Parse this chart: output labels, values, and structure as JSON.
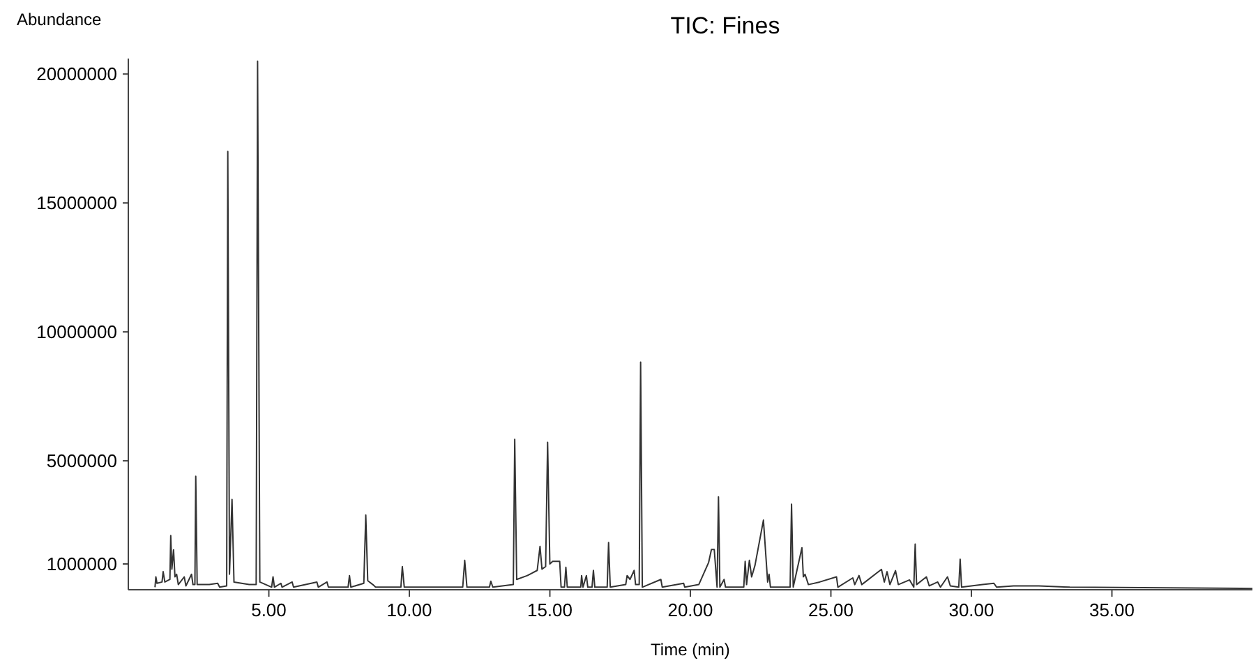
{
  "chart_data": {
    "type": "line",
    "title": "TIC: Fines",
    "xlabel": "Time (min)",
    "ylabel": "Abundance",
    "xlim": [
      0,
      40
    ],
    "xticks": [
      {
        "value": 5,
        "label": "5.00"
      },
      {
        "value": 10,
        "label": "10.00"
      },
      {
        "value": 15,
        "label": "15.00"
      },
      {
        "value": 20,
        "label": "20.00"
      },
      {
        "value": 25,
        "label": "25.00"
      },
      {
        "value": 30,
        "label": "30.00"
      },
      {
        "value": 35,
        "label": "35.00"
      }
    ],
    "ylim": [
      0,
      20600000
    ],
    "yticks": [
      1000000,
      5000000,
      10000000,
      15000000,
      20000000
    ],
    "grid": false,
    "marker": "none",
    "line_style": "solid",
    "series": [
      {
        "color": "#333333",
        "x": [
          0.95,
          0.98,
          1.02,
          1.2,
          1.24,
          1.3,
          1.48,
          1.51,
          1.55,
          1.61,
          1.66,
          1.72,
          1.78,
          1.99,
          2.05,
          2.25,
          2.3,
          2.37,
          2.4,
          2.45,
          2.88,
          3.18,
          3.25,
          3.5,
          3.54,
          3.6,
          3.69,
          3.76,
          4.3,
          4.55,
          4.6,
          4.68,
          5.1,
          5.15,
          5.2,
          5.43,
          5.47,
          5.83,
          5.88,
          6.71,
          6.76,
          7.07,
          7.12,
          7.82,
          7.87,
          7.92,
          8.38,
          8.45,
          8.52,
          8.7,
          8.8,
          9.7,
          9.75,
          9.82,
          11.9,
          11.97,
          12.05,
          12.85,
          12.9,
          12.97,
          13.7,
          13.75,
          13.82,
          14.2,
          14.55,
          14.65,
          14.72,
          14.85,
          14.92,
          15.0,
          15.1,
          15.35,
          15.4,
          15.52,
          15.57,
          15.62,
          16.1,
          16.13,
          16.18,
          16.3,
          16.35,
          16.5,
          16.55,
          16.6,
          17.04,
          17.09,
          17.15,
          17.7,
          17.75,
          17.85,
          18.0,
          18.05,
          18.18,
          18.23,
          18.29,
          18.95,
          19.0,
          19.76,
          19.8,
          20.3,
          20.65,
          20.75,
          20.85,
          20.95,
          21.0,
          21.05,
          21.2,
          21.25,
          21.9,
          21.95,
          22.0,
          22.1,
          22.18,
          22.3,
          22.6,
          22.75,
          22.8,
          22.85,
          23.55,
          23.6,
          23.66,
          23.97,
          24.02,
          24.08,
          24.2,
          24.6,
          25.2,
          25.25,
          25.78,
          25.85,
          26.0,
          26.1,
          26.8,
          26.9,
          27.0,
          27.1,
          27.3,
          27.4,
          27.8,
          27.95,
          28.0,
          28.05,
          28.4,
          28.5,
          28.8,
          28.9,
          29.15,
          29.25,
          29.55,
          29.6,
          29.65,
          30.4,
          30.8,
          30.9,
          31.5,
          32.4,
          33.5,
          40
        ],
        "values": [
          100000,
          500000,
          250000,
          300000,
          700000,
          300000,
          400000,
          2100000,
          800000,
          1550000,
          500000,
          600000,
          200000,
          500000,
          150000,
          600000,
          200000,
          200000,
          4400000,
          200000,
          200000,
          250000,
          100000,
          150000,
          17000000,
          600000,
          3500000,
          300000,
          200000,
          200000,
          20500000,
          300000,
          100000,
          500000,
          100000,
          250000,
          100000,
          300000,
          100000,
          300000,
          100000,
          300000,
          100000,
          100000,
          550000,
          100000,
          250000,
          2900000,
          350000,
          200000,
          100000,
          100000,
          900000,
          100000,
          100000,
          1140000,
          100000,
          100000,
          330000,
          100000,
          200000,
          5830000,
          400000,
          550000,
          750000,
          1680000,
          800000,
          900000,
          5720000,
          1000000,
          1100000,
          1100000,
          100000,
          100000,
          870000,
          100000,
          100000,
          550000,
          100000,
          550000,
          100000,
          100000,
          750000,
          100000,
          100000,
          1830000,
          100000,
          200000,
          550000,
          400000,
          750000,
          200000,
          200000,
          8830000,
          100000,
          400000,
          100000,
          250000,
          100000,
          200000,
          1060000,
          1560000,
          1560000,
          100000,
          3600000,
          100000,
          400000,
          100000,
          100000,
          1100000,
          200000,
          1140000,
          500000,
          950000,
          2700000,
          300000,
          600000,
          100000,
          100000,
          3320000,
          100000,
          1630000,
          500000,
          600000,
          200000,
          300000,
          500000,
          100000,
          460000,
          200000,
          550000,
          200000,
          790000,
          300000,
          700000,
          200000,
          740000,
          200000,
          380000,
          100000,
          1770000,
          200000,
          500000,
          150000,
          300000,
          100000,
          500000,
          150000,
          100000,
          1180000,
          100000,
          200000,
          250000,
          100000,
          150000,
          150000,
          100000,
          50000
        ]
      }
    ]
  }
}
